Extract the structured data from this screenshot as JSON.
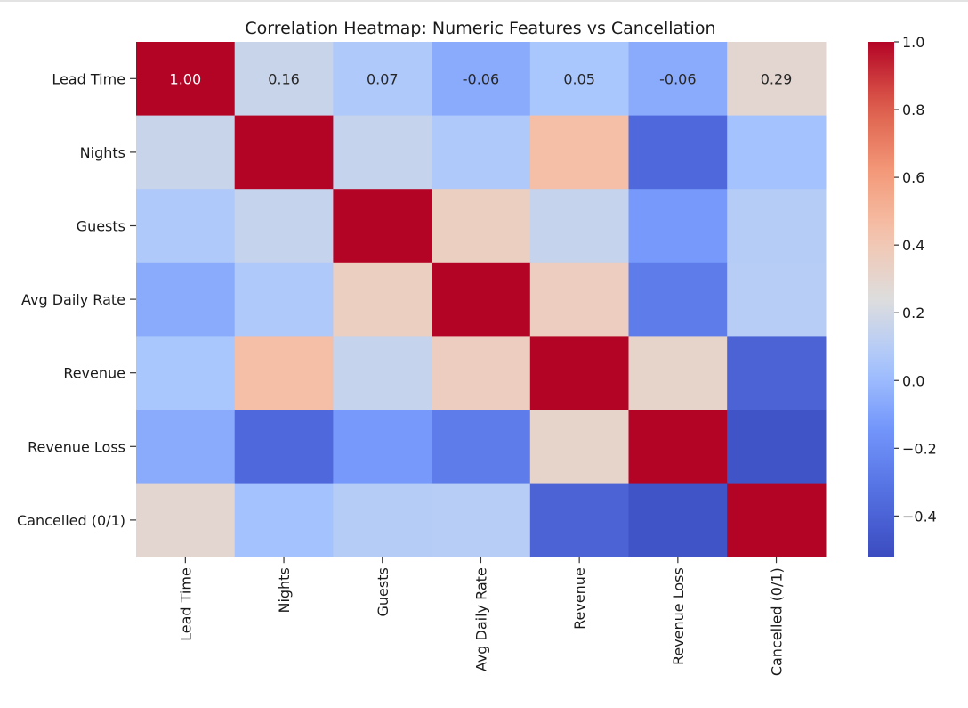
{
  "chart_data": {
    "type": "heatmap",
    "title": "Correlation Heatmap: Numeric Features vs Cancellation",
    "xlabel": "",
    "ylabel": "",
    "rows": [
      "Lead Time",
      "Nights",
      "Guests",
      "Avg Daily Rate",
      "Revenue",
      "Revenue Loss",
      "Cancelled (0/1)"
    ],
    "columns": [
      "Lead Time",
      "Nights",
      "Guests",
      "Avg Daily Rate",
      "Revenue",
      "Revenue Loss",
      "Cancelled (0/1)"
    ],
    "values": [
      [
        1.0,
        0.16,
        0.07,
        -0.06,
        0.05,
        -0.06,
        0.29
      ],
      [
        0.16,
        1.0,
        0.15,
        0.07,
        0.45,
        -0.37,
        0.03
      ],
      [
        0.07,
        0.15,
        1.0,
        0.35,
        0.15,
        -0.13,
        0.09
      ],
      [
        -0.06,
        0.07,
        0.35,
        1.0,
        0.36,
        -0.27,
        0.1
      ],
      [
        0.05,
        0.45,
        0.15,
        0.36,
        1.0,
        0.31,
        -0.4
      ],
      [
        -0.06,
        -0.37,
        -0.13,
        -0.27,
        0.31,
        1.0,
        -0.48
      ],
      [
        0.29,
        0.03,
        0.09,
        0.1,
        -0.4,
        -0.48,
        1.0
      ]
    ],
    "annotated_row": 0,
    "colorbar": {
      "range": [
        -0.52,
        1.0
      ],
      "ticks": [
        1.0,
        0.8,
        0.6,
        0.4,
        0.2,
        0.0,
        -0.2,
        -0.4
      ],
      "tick_labels": [
        "1.0",
        "0.8",
        "0.6",
        "0.4",
        "0.2",
        "0.0",
        "−0.2",
        "−0.4"
      ],
      "colormap": "coolwarm"
    }
  }
}
